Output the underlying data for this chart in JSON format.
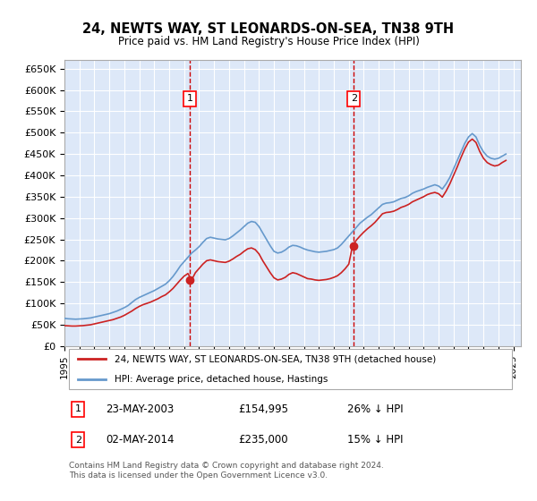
{
  "title": "24, NEWTS WAY, ST LEONARDS-ON-SEA, TN38 9TH",
  "subtitle": "Price paid vs. HM Land Registry's House Price Index (HPI)",
  "ylabel_ticks": [
    "£0",
    "£50K",
    "£100K",
    "£150K",
    "£200K",
    "£250K",
    "£300K",
    "£350K",
    "£400K",
    "£450K",
    "£500K",
    "£550K",
    "£600K",
    "£650K"
  ],
  "ytick_values": [
    0,
    50000,
    100000,
    150000,
    200000,
    250000,
    300000,
    350000,
    400000,
    450000,
    500000,
    550000,
    600000,
    650000
  ],
  "ylim": [
    0,
    670000
  ],
  "xlim_start": 1995.0,
  "xlim_end": 2025.5,
  "background_color": "#dde8f8",
  "plot_bg": "#dde8f8",
  "grid_color": "#ffffff",
  "sale1_x": 2003.39,
  "sale1_y": 154995,
  "sale1_label": "1",
  "sale2_x": 2014.34,
  "sale2_y": 235000,
  "sale2_label": "2",
  "vline1_x": 2003.39,
  "vline2_x": 2014.34,
  "legend_line1": "24, NEWTS WAY, ST LEONARDS-ON-SEA, TN38 9TH (detached house)",
  "legend_line2": "HPI: Average price, detached house, Hastings",
  "table_rows": [
    {
      "num": "1",
      "date": "23-MAY-2003",
      "price": "£154,995",
      "pct": "26% ↓ HPI"
    },
    {
      "num": "2",
      "date": "02-MAY-2014",
      "price": "£235,000",
      "pct": "15% ↓ HPI"
    }
  ],
  "footnote": "Contains HM Land Registry data © Crown copyright and database right 2024.\nThis data is licensed under the Open Government Licence v3.0.",
  "hpi_color": "#6699cc",
  "price_color": "#cc2222",
  "vline_color": "#cc0000",
  "marker_color": "#cc2222",
  "hpi_data_x": [
    1995.0,
    1995.25,
    1995.5,
    1995.75,
    1996.0,
    1996.25,
    1996.5,
    1996.75,
    1997.0,
    1997.25,
    1997.5,
    1997.75,
    1998.0,
    1998.25,
    1998.5,
    1998.75,
    1999.0,
    1999.25,
    1999.5,
    1999.75,
    2000.0,
    2000.25,
    2000.5,
    2000.75,
    2001.0,
    2001.25,
    2001.5,
    2001.75,
    2002.0,
    2002.25,
    2002.5,
    2002.75,
    2003.0,
    2003.25,
    2003.5,
    2003.75,
    2004.0,
    2004.25,
    2004.5,
    2004.75,
    2005.0,
    2005.25,
    2005.5,
    2005.75,
    2006.0,
    2006.25,
    2006.5,
    2006.75,
    2007.0,
    2007.25,
    2007.5,
    2007.75,
    2008.0,
    2008.25,
    2008.5,
    2008.75,
    2009.0,
    2009.25,
    2009.5,
    2009.75,
    2010.0,
    2010.25,
    2010.5,
    2010.75,
    2011.0,
    2011.25,
    2011.5,
    2011.75,
    2012.0,
    2012.25,
    2012.5,
    2012.75,
    2013.0,
    2013.25,
    2013.5,
    2013.75,
    2014.0,
    2014.25,
    2014.5,
    2014.75,
    2015.0,
    2015.25,
    2015.5,
    2015.75,
    2016.0,
    2016.25,
    2016.5,
    2016.75,
    2017.0,
    2017.25,
    2017.5,
    2017.75,
    2018.0,
    2018.25,
    2018.5,
    2018.75,
    2019.0,
    2019.25,
    2019.5,
    2019.75,
    2020.0,
    2020.25,
    2020.5,
    2020.75,
    2021.0,
    2021.25,
    2021.5,
    2021.75,
    2022.0,
    2022.25,
    2022.5,
    2022.75,
    2023.0,
    2023.25,
    2023.5,
    2023.75,
    2024.0,
    2024.25,
    2024.5
  ],
  "hpi_data_y": [
    65000,
    64000,
    63500,
    63000,
    63500,
    64000,
    65000,
    66000,
    68000,
    70000,
    72000,
    74000,
    76000,
    79000,
    82000,
    86000,
    90000,
    95000,
    102000,
    109000,
    114000,
    118000,
    122000,
    126000,
    130000,
    135000,
    140000,
    145000,
    153000,
    163000,
    175000,
    188000,
    198000,
    208000,
    218000,
    225000,
    233000,
    243000,
    252000,
    255000,
    253000,
    251000,
    250000,
    249000,
    252000,
    258000,
    265000,
    272000,
    280000,
    288000,
    292000,
    290000,
    280000,
    265000,
    250000,
    235000,
    222000,
    218000,
    220000,
    225000,
    232000,
    236000,
    235000,
    232000,
    228000,
    225000,
    223000,
    221000,
    220000,
    221000,
    222000,
    224000,
    226000,
    230000,
    238000,
    248000,
    258000,
    268000,
    278000,
    288000,
    295000,
    302000,
    308000,
    316000,
    324000,
    332000,
    335000,
    336000,
    338000,
    342000,
    346000,
    348000,
    352000,
    358000,
    362000,
    365000,
    368000,
    372000,
    375000,
    378000,
    375000,
    368000,
    380000,
    395000,
    415000,
    435000,
    455000,
    475000,
    490000,
    498000,
    490000,
    470000,
    455000,
    445000,
    440000,
    438000,
    440000,
    445000,
    450000
  ],
  "price_data_x": [
    1995.0,
    1995.25,
    1995.5,
    1995.75,
    1996.0,
    1996.25,
    1996.5,
    1996.75,
    1997.0,
    1997.25,
    1997.5,
    1997.75,
    1998.0,
    1998.25,
    1998.5,
    1998.75,
    1999.0,
    1999.25,
    1999.5,
    1999.75,
    2000.0,
    2000.25,
    2000.5,
    2000.75,
    2001.0,
    2001.25,
    2001.5,
    2001.75,
    2002.0,
    2002.25,
    2002.5,
    2002.75,
    2003.0,
    2003.25,
    2003.5,
    2003.75,
    2004.0,
    2004.25,
    2004.5,
    2004.75,
    2005.0,
    2005.25,
    2005.5,
    2005.75,
    2006.0,
    2006.25,
    2006.5,
    2006.75,
    2007.0,
    2007.25,
    2007.5,
    2007.75,
    2008.0,
    2008.25,
    2008.5,
    2008.75,
    2009.0,
    2009.25,
    2009.5,
    2009.75,
    2010.0,
    2010.25,
    2010.5,
    2010.75,
    2011.0,
    2011.25,
    2011.5,
    2011.75,
    2012.0,
    2012.25,
    2012.5,
    2012.75,
    2013.0,
    2013.25,
    2013.5,
    2013.75,
    2014.0,
    2014.25,
    2014.5,
    2014.75,
    2015.0,
    2015.25,
    2015.5,
    2015.75,
    2016.0,
    2016.25,
    2016.5,
    2016.75,
    2017.0,
    2017.25,
    2017.5,
    2017.75,
    2018.0,
    2018.25,
    2018.5,
    2018.75,
    2019.0,
    2019.25,
    2019.5,
    2019.75,
    2020.0,
    2020.25,
    2020.5,
    2020.75,
    2021.0,
    2021.25,
    2021.5,
    2021.75,
    2022.0,
    2022.25,
    2022.5,
    2022.75,
    2023.0,
    2023.25,
    2023.5,
    2023.75,
    2024.0,
    2024.25,
    2024.5
  ],
  "price_data_y": [
    48000,
    47500,
    47000,
    47000,
    47500,
    48000,
    49000,
    50000,
    52000,
    54000,
    56000,
    58000,
    60000,
    62000,
    65000,
    68000,
    72000,
    77000,
    82000,
    88000,
    93000,
    97000,
    100000,
    103000,
    107000,
    111000,
    116000,
    120000,
    127000,
    135000,
    145000,
    155000,
    164000,
    170000,
    154995,
    172000,
    182000,
    192000,
    200000,
    202000,
    200000,
    198000,
    197000,
    196000,
    199000,
    204000,
    210000,
    215000,
    222000,
    228000,
    230000,
    226000,
    216000,
    200000,
    186000,
    172000,
    160000,
    155000,
    157000,
    161000,
    168000,
    172000,
    170000,
    166000,
    162000,
    158000,
    157000,
    155000,
    154000,
    155000,
    156000,
    158000,
    161000,
    165000,
    172000,
    181000,
    192000,
    235000,
    248000,
    258000,
    267000,
    275000,
    282000,
    290000,
    300000,
    310000,
    313000,
    314000,
    316000,
    320000,
    325000,
    328000,
    332000,
    338000,
    342000,
    346000,
    350000,
    355000,
    358000,
    360000,
    357000,
    349000,
    363000,
    380000,
    400000,
    420000,
    442000,
    462000,
    478000,
    485000,
    477000,
    456000,
    440000,
    430000,
    425000,
    422000,
    424000,
    430000,
    435000
  ]
}
